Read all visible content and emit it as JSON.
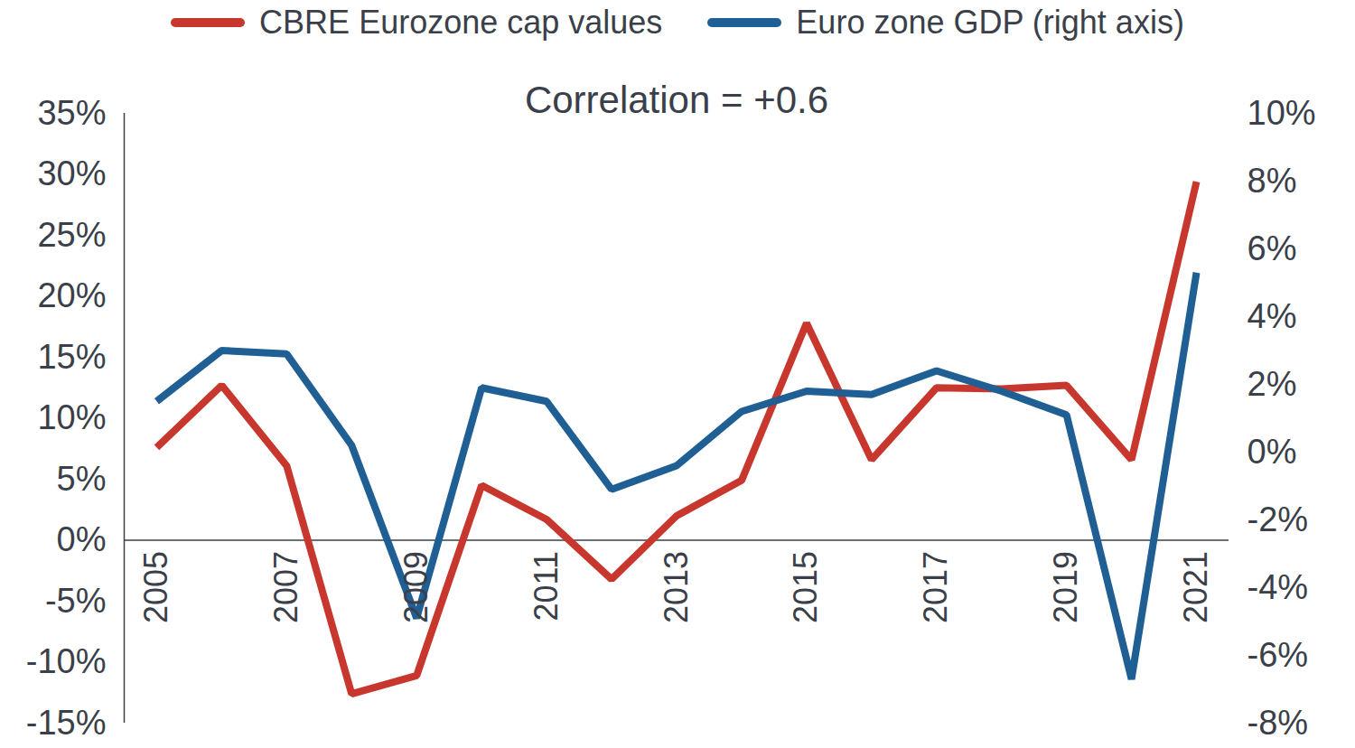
{
  "chart_data": {
    "type": "line",
    "annotations": [
      "Correlation = +0.6"
    ],
    "x": [
      2005,
      2006,
      2007,
      2008,
      2009,
      2010,
      2011,
      2012,
      2013,
      2014,
      2015,
      2016,
      2017,
      2018,
      2019,
      2020,
      2021
    ],
    "xlim": [
      2004.5,
      2021.5
    ],
    "xticks": [
      2005,
      2007,
      2009,
      2011,
      2013,
      2015,
      2017,
      2019,
      2021
    ],
    "ylim": [
      -15,
      35
    ],
    "yticks": [
      {
        "value": -15,
        "label": "-15%"
      },
      {
        "value": -10,
        "label": "-10%"
      },
      {
        "value": -5,
        "label": "-5%"
      },
      {
        "value": 0,
        "label": "0%"
      },
      {
        "value": 5,
        "label": "5%"
      },
      {
        "value": 10,
        "label": "10%"
      },
      {
        "value": 15,
        "label": "15%"
      },
      {
        "value": 20,
        "label": "20%"
      },
      {
        "value": 25,
        "label": "25%"
      },
      {
        "value": 30,
        "label": "30%"
      },
      {
        "value": 35,
        "label": "35%"
      }
    ],
    "y2lim": [
      -8,
      10
    ],
    "y2ticks": [
      {
        "value": -8,
        "label": "-8%"
      },
      {
        "value": -6,
        "label": "-6%"
      },
      {
        "value": -4,
        "label": "-4%"
      },
      {
        "value": -2,
        "label": "-2%"
      },
      {
        "value": 0,
        "label": "0%"
      },
      {
        "value": 2,
        "label": "2%"
      },
      {
        "value": 4,
        "label": "4%"
      },
      {
        "value": 6,
        "label": "6%"
      },
      {
        "value": 8,
        "label": "8%"
      },
      {
        "value": 10,
        "label": "10%"
      }
    ],
    "grid": false,
    "legend": "top",
    "series": [
      {
        "name": "CBRE Eurozone cap values",
        "color": "#c8372d",
        "values": [
          7.6,
          12.7,
          6.1,
          -12.6,
          -11.1,
          4.5,
          1.7,
          -3.2,
          2.0,
          4.9,
          17.8,
          6.6,
          12.5,
          12.4,
          12.7,
          6.6,
          29.4
        ]
      },
      {
        "name": "Euro zone GDP (right axis)",
        "color": "#1f5f94",
        "axis": "y2",
        "values": [
          1.5,
          3.0,
          2.9,
          0.2,
          -4.9,
          1.9,
          1.5,
          -1.1,
          -0.4,
          1.2,
          1.8,
          1.7,
          2.4,
          1.8,
          1.1,
          -6.7,
          5.3
        ]
      }
    ]
  }
}
